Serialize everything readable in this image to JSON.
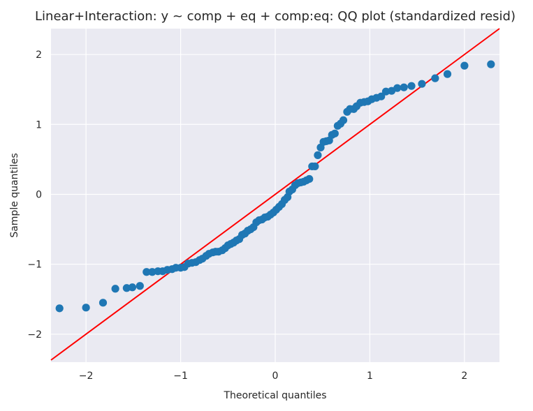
{
  "chart_data": {
    "type": "scatter",
    "title": "Linear+Interaction: y ~ comp + eq + comp:eq: QQ plot (standardized resid)",
    "xlabel": "Theoretical quantiles",
    "ylabel": "Sample quantiles",
    "xlim": [
      -2.37,
      2.37
    ],
    "ylim": [
      -2.4,
      2.37
    ],
    "xticks": [
      -2,
      -1,
      0,
      1,
      2
    ],
    "yticks": [
      -2,
      -1,
      0,
      1,
      2
    ],
    "xtick_labels": [
      "−2",
      "−1",
      "0",
      "1",
      "2"
    ],
    "ytick_labels": [
      "−2",
      "−1",
      "0",
      "1",
      "2"
    ],
    "grid": true,
    "background": "#eaeaf2",
    "point_color": "#1f77b4",
    "line_color": "#ff0000",
    "reference_line": {
      "slope": 1,
      "intercept": 0
    },
    "series": [
      {
        "points": [
          [
            -2.28,
            -1.63
          ],
          [
            -2.0,
            -1.62
          ],
          [
            -1.82,
            -1.55
          ],
          [
            -1.69,
            -1.35
          ],
          [
            -1.57,
            -1.34
          ],
          [
            -1.51,
            -1.33
          ],
          [
            -1.43,
            -1.31
          ],
          [
            -1.36,
            -1.11
          ],
          [
            -1.3,
            -1.11
          ],
          [
            -1.24,
            -1.1
          ],
          [
            -1.19,
            -1.1
          ],
          [
            -1.14,
            -1.08
          ],
          [
            -1.09,
            -1.07
          ],
          [
            -1.05,
            -1.05
          ],
          [
            -1.0,
            -1.05
          ],
          [
            -0.96,
            -1.04
          ],
          [
            -0.92,
            -0.99
          ],
          [
            -0.88,
            -0.98
          ],
          [
            -0.84,
            -0.97
          ],
          [
            -0.8,
            -0.94
          ],
          [
            -0.77,
            -0.92
          ],
          [
            -0.73,
            -0.88
          ],
          [
            -0.7,
            -0.85
          ],
          [
            -0.66,
            -0.83
          ],
          [
            -0.63,
            -0.82
          ],
          [
            -0.6,
            -0.82
          ],
          [
            -0.56,
            -0.8
          ],
          [
            -0.53,
            -0.77
          ],
          [
            -0.5,
            -0.73
          ],
          [
            -0.47,
            -0.71
          ],
          [
            -0.44,
            -0.69
          ],
          [
            -0.41,
            -0.66
          ],
          [
            -0.38,
            -0.64
          ],
          [
            -0.35,
            -0.58
          ],
          [
            -0.32,
            -0.56
          ],
          [
            -0.29,
            -0.52
          ],
          [
            -0.26,
            -0.5
          ],
          [
            -0.23,
            -0.47
          ],
          [
            -0.2,
            -0.4
          ],
          [
            -0.17,
            -0.37
          ],
          [
            -0.14,
            -0.36
          ],
          [
            -0.11,
            -0.33
          ],
          [
            -0.08,
            -0.32
          ],
          [
            -0.05,
            -0.29
          ],
          [
            -0.02,
            -0.26
          ],
          [
            0.01,
            -0.22
          ],
          [
            0.04,
            -0.18
          ],
          [
            0.07,
            -0.14
          ],
          [
            0.1,
            -0.08
          ],
          [
            0.13,
            -0.04
          ],
          [
            0.15,
            0.04
          ],
          [
            0.18,
            0.07
          ],
          [
            0.21,
            0.13
          ],
          [
            0.24,
            0.16
          ],
          [
            0.27,
            0.17
          ],
          [
            0.3,
            0.18
          ],
          [
            0.33,
            0.2
          ],
          [
            0.36,
            0.22
          ],
          [
            0.39,
            0.4
          ],
          [
            0.42,
            0.4
          ],
          [
            0.45,
            0.56
          ],
          [
            0.48,
            0.67
          ],
          [
            0.51,
            0.75
          ],
          [
            0.54,
            0.76
          ],
          [
            0.57,
            0.77
          ],
          [
            0.6,
            0.85
          ],
          [
            0.63,
            0.87
          ],
          [
            0.66,
            0.98
          ],
          [
            0.69,
            1.01
          ],
          [
            0.72,
            1.06
          ],
          [
            0.76,
            1.18
          ],
          [
            0.79,
            1.22
          ],
          [
            0.83,
            1.22
          ],
          [
            0.86,
            1.26
          ],
          [
            0.9,
            1.31
          ],
          [
            0.94,
            1.32
          ],
          [
            0.98,
            1.33
          ],
          [
            1.02,
            1.36
          ],
          [
            1.07,
            1.38
          ],
          [
            1.12,
            1.4
          ],
          [
            1.17,
            1.47
          ],
          [
            1.23,
            1.48
          ],
          [
            1.29,
            1.52
          ],
          [
            1.36,
            1.53
          ],
          [
            1.44,
            1.55
          ],
          [
            1.55,
            1.58
          ],
          [
            1.69,
            1.66
          ],
          [
            1.82,
            1.72
          ],
          [
            2.0,
            1.84
          ],
          [
            2.28,
            1.86
          ]
        ]
      }
    ]
  }
}
